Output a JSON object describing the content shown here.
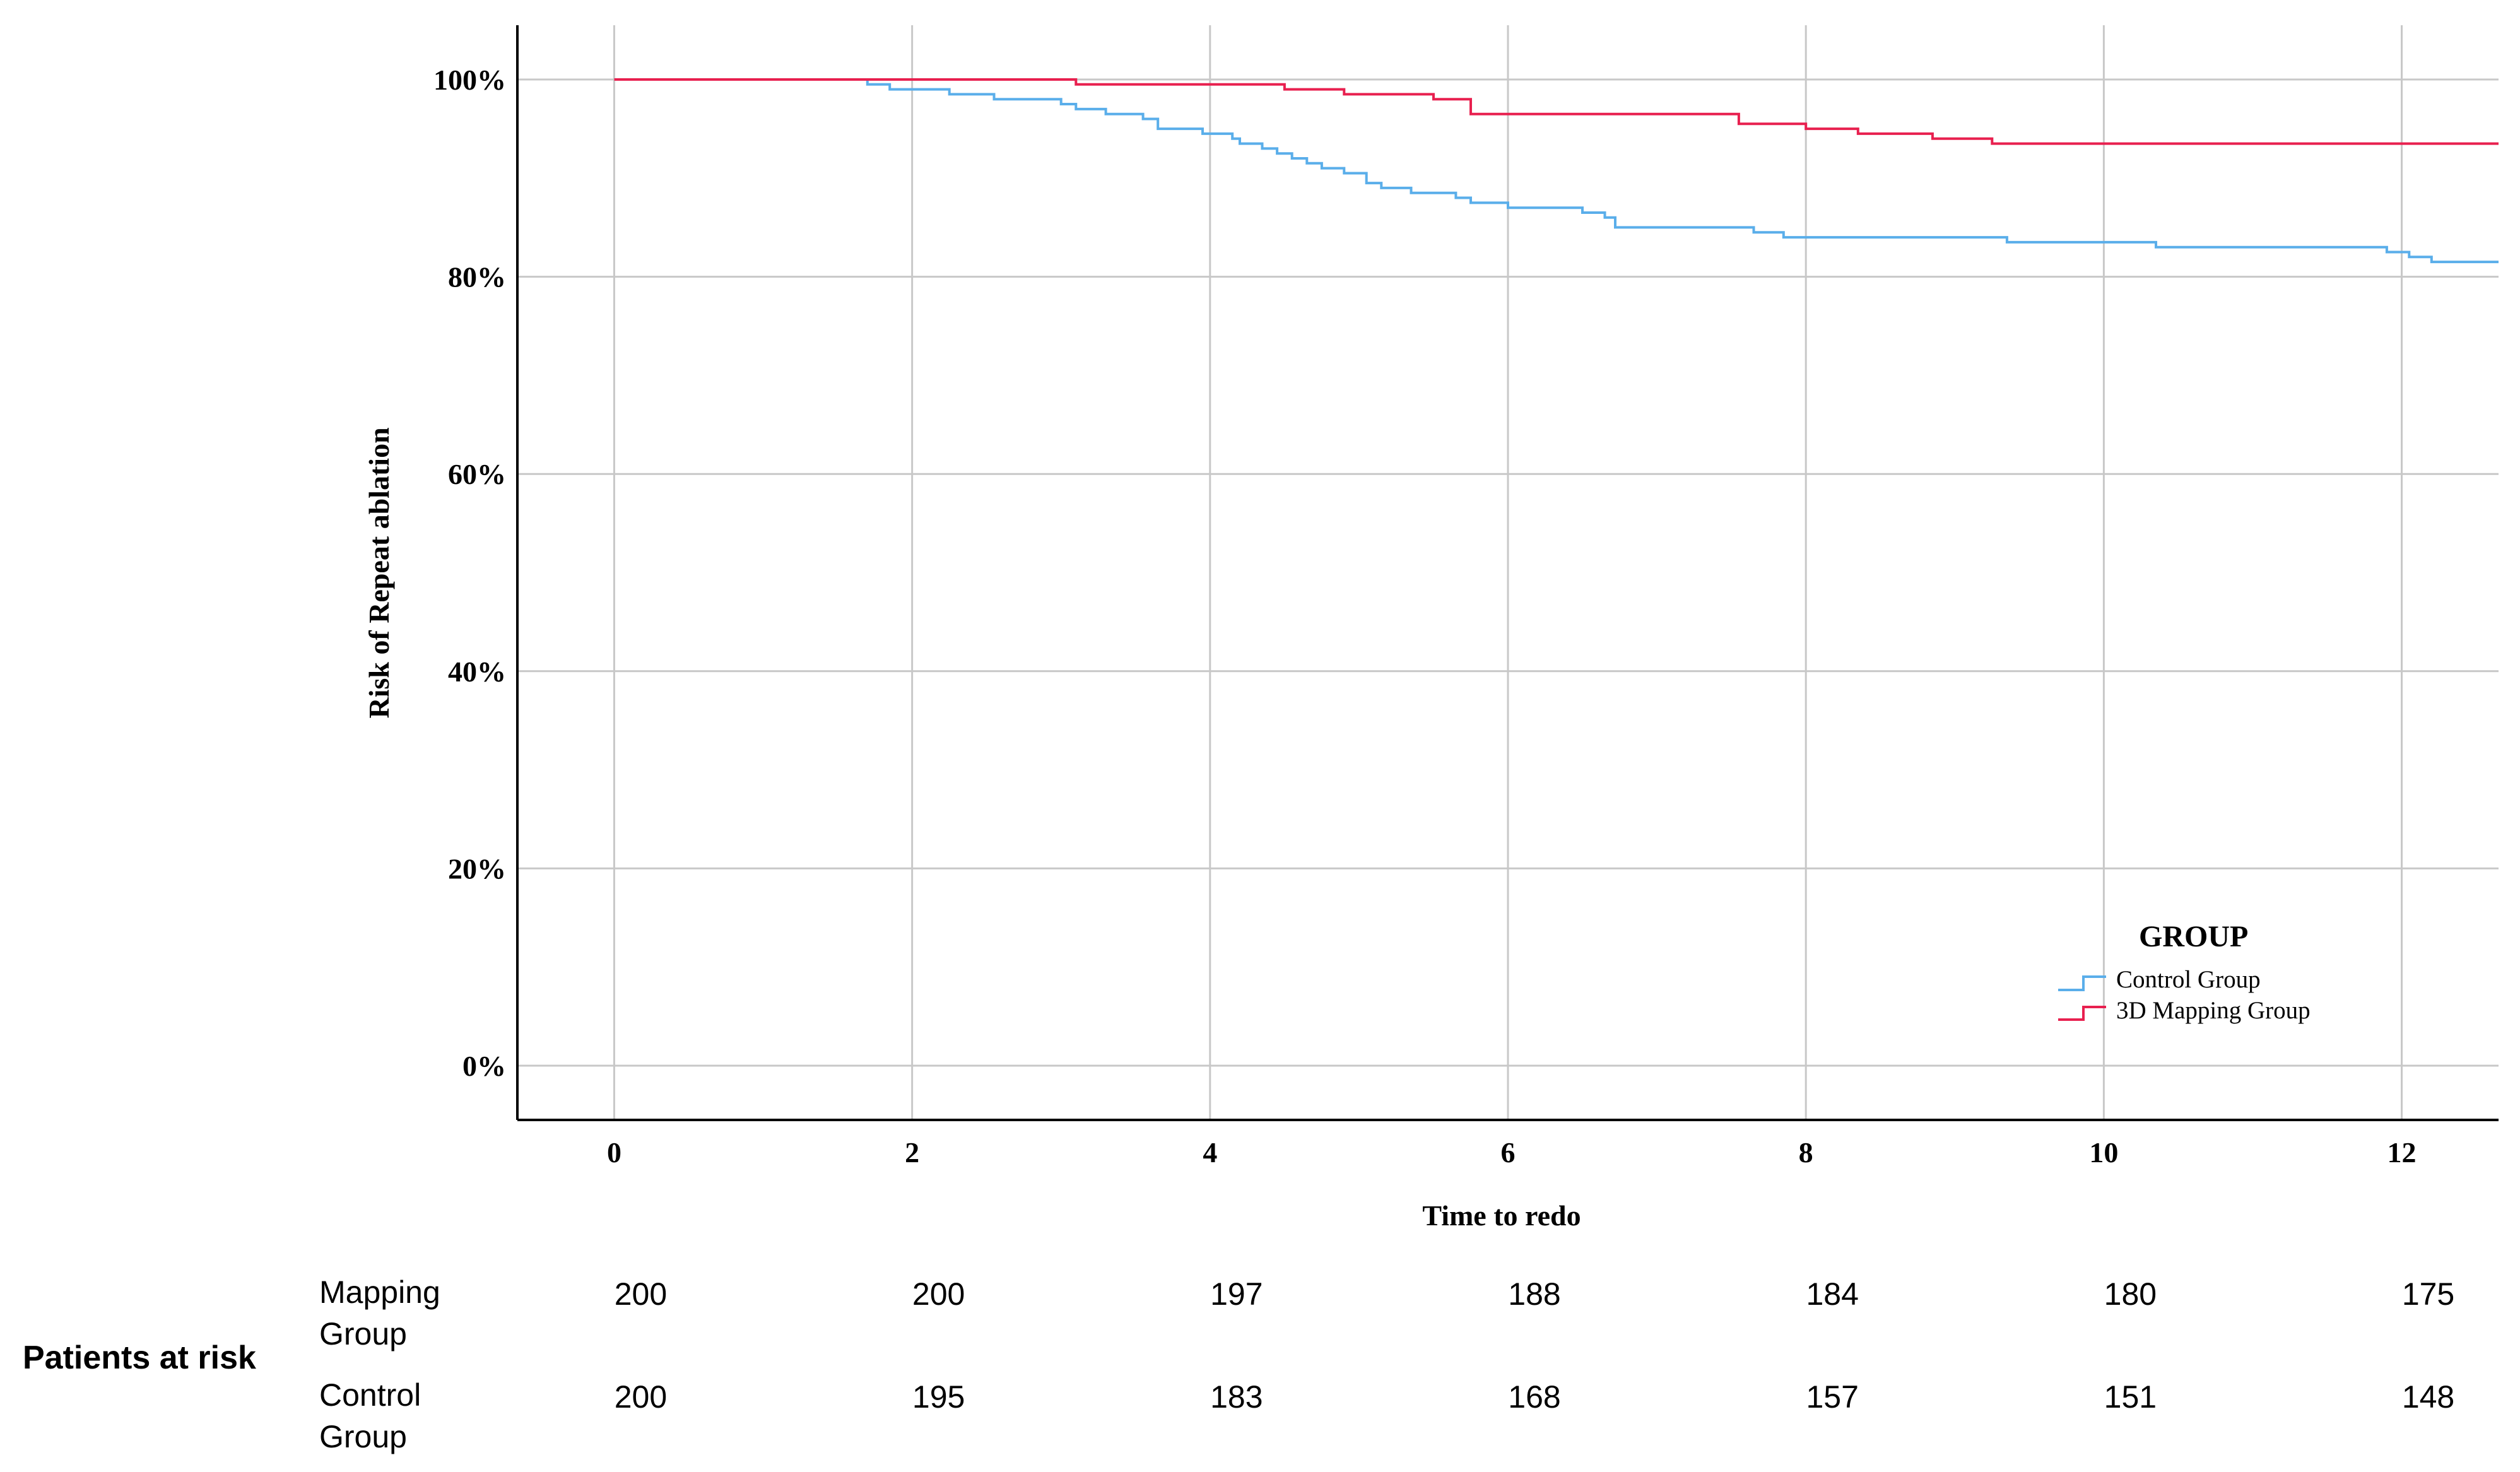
{
  "chart_data": {
    "type": "line",
    "step": true,
    "xlabel": "Time to redo",
    "ylabel": "Risk of Repeat ablation",
    "xticks": [
      0,
      2,
      4,
      6,
      8,
      10,
      12
    ],
    "xlim": [
      -0.65,
      12.65
    ],
    "yticks": [
      "0%",
      "20%",
      "40%",
      "60%",
      "80%",
      "100%"
    ],
    "ylim": [
      -5.5,
      105.5
    ],
    "grid": true,
    "legend": {
      "title": "GROUP",
      "position": "bottom-right"
    },
    "series": [
      {
        "name": "Control Group",
        "color": "#5aaeea",
        "points": [
          [
            0,
            100
          ],
          [
            1.7,
            100
          ],
          [
            1.7,
            99.5
          ],
          [
            1.85,
            99.5
          ],
          [
            1.85,
            99
          ],
          [
            2.25,
            99
          ],
          [
            2.25,
            98.5
          ],
          [
            2.55,
            98.5
          ],
          [
            2.55,
            98
          ],
          [
            3.0,
            98
          ],
          [
            3.0,
            97.5
          ],
          [
            3.1,
            97.5
          ],
          [
            3.1,
            97
          ],
          [
            3.3,
            97
          ],
          [
            3.3,
            96.5
          ],
          [
            3.55,
            96.5
          ],
          [
            3.55,
            96
          ],
          [
            3.65,
            96
          ],
          [
            3.65,
            95
          ],
          [
            3.95,
            95
          ],
          [
            3.95,
            94.5
          ],
          [
            4.15,
            94.5
          ],
          [
            4.15,
            94
          ],
          [
            4.2,
            94
          ],
          [
            4.2,
            93.5
          ],
          [
            4.35,
            93.5
          ],
          [
            4.35,
            93
          ],
          [
            4.45,
            93
          ],
          [
            4.45,
            92.5
          ],
          [
            4.55,
            92.5
          ],
          [
            4.55,
            92
          ],
          [
            4.65,
            92
          ],
          [
            4.65,
            91.5
          ],
          [
            4.75,
            91.5
          ],
          [
            4.75,
            91
          ],
          [
            4.9,
            91
          ],
          [
            4.9,
            90.5
          ],
          [
            5.05,
            90.5
          ],
          [
            5.05,
            89.5
          ],
          [
            5.15,
            89.5
          ],
          [
            5.15,
            89
          ],
          [
            5.35,
            89
          ],
          [
            5.35,
            88.5
          ],
          [
            5.65,
            88.5
          ],
          [
            5.65,
            88
          ],
          [
            5.75,
            88
          ],
          [
            5.75,
            87.5
          ],
          [
            6.0,
            87.5
          ],
          [
            6.0,
            87
          ],
          [
            6.5,
            87
          ],
          [
            6.5,
            86.5
          ],
          [
            6.65,
            86.5
          ],
          [
            6.65,
            86
          ],
          [
            6.72,
            86
          ],
          [
            6.72,
            85
          ],
          [
            7.65,
            85
          ],
          [
            7.65,
            84.5
          ],
          [
            7.85,
            84.5
          ],
          [
            7.85,
            84
          ],
          [
            9.35,
            84
          ],
          [
            9.35,
            83.5
          ],
          [
            10.35,
            83.5
          ],
          [
            10.35,
            83
          ],
          [
            11.9,
            83
          ],
          [
            11.9,
            82.5
          ],
          [
            12.05,
            82.5
          ],
          [
            12.05,
            82
          ],
          [
            12.2,
            82
          ],
          [
            12.2,
            81.5
          ],
          [
            12.65,
            81.5
          ]
        ]
      },
      {
        "name": "3D Mapping Group",
        "color": "#e8204f",
        "points": [
          [
            0,
            100
          ],
          [
            3.1,
            100
          ],
          [
            3.1,
            99.5
          ],
          [
            4.5,
            99.5
          ],
          [
            4.5,
            99
          ],
          [
            4.9,
            99
          ],
          [
            4.9,
            98.5
          ],
          [
            5.5,
            98.5
          ],
          [
            5.5,
            98
          ],
          [
            5.75,
            98
          ],
          [
            5.75,
            96.5
          ],
          [
            7.55,
            96.5
          ],
          [
            7.55,
            95.5
          ],
          [
            8.0,
            95.5
          ],
          [
            8.0,
            95
          ],
          [
            8.35,
            95
          ],
          [
            8.35,
            94.5
          ],
          [
            8.85,
            94.5
          ],
          [
            8.85,
            94
          ],
          [
            9.25,
            94
          ],
          [
            9.25,
            93.5
          ],
          [
            12.65,
            93.5
          ]
        ]
      }
    ]
  },
  "risk_table": {
    "title": "Patients at risk",
    "rows": [
      {
        "label_line1": "Mapping",
        "label_line2": "Group",
        "values": [
          "200",
          "200",
          "197",
          "188",
          "184",
          "180",
          "175"
        ]
      },
      {
        "label_line1": "Control",
        "label_line2": "Group",
        "values": [
          "200",
          "195",
          "183",
          "168",
          "157",
          "151",
          "148"
        ]
      }
    ]
  }
}
